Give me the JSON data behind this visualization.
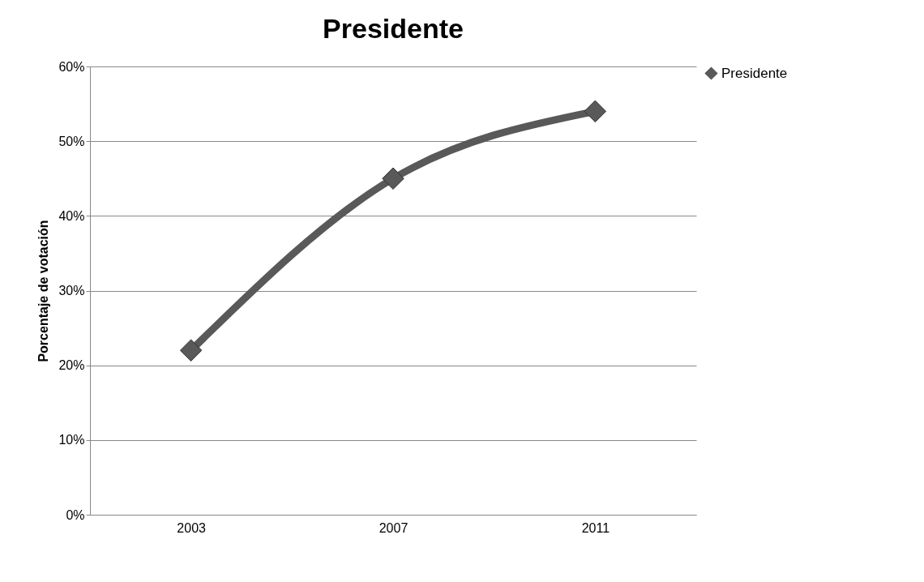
{
  "chart_data": {
    "type": "line",
    "title": "Presidente",
    "ylabel": "Porcentaje de votación",
    "categories": [
      "2003",
      "2007",
      "2011"
    ],
    "series": [
      {
        "name": "Presidente",
        "color": "#595959",
        "values": [
          22,
          45,
          54
        ]
      }
    ],
    "ylim": [
      0,
      60
    ],
    "yticks": [
      {
        "value": 0,
        "label": "0%"
      },
      {
        "value": 10,
        "label": "10%"
      },
      {
        "value": 20,
        "label": "20%"
      },
      {
        "value": 30,
        "label": "30%"
      },
      {
        "value": 40,
        "label": "40%"
      },
      {
        "value": 50,
        "label": "50%"
      },
      {
        "value": 60,
        "label": "60%"
      }
    ],
    "grid": "y",
    "legend": "right",
    "marker": "diamond",
    "line_style": "solid"
  }
}
